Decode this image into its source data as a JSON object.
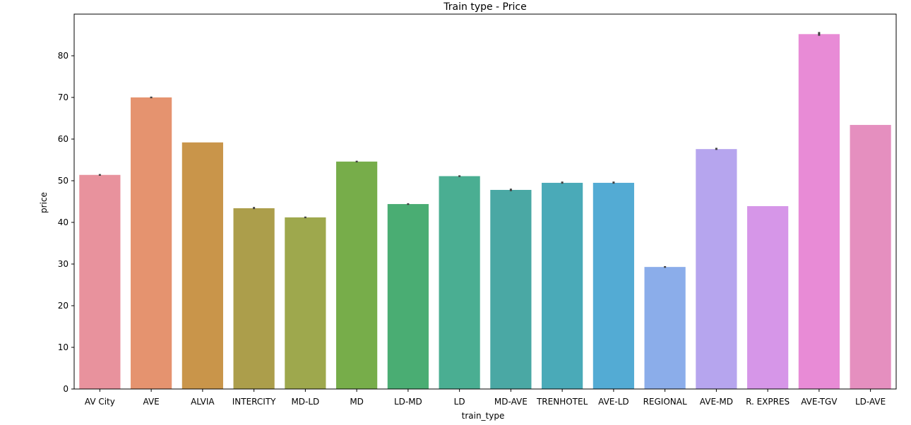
{
  "chart_data": {
    "type": "bar",
    "title": "Train type - Price",
    "xlabel": "train_type",
    "ylabel": "price",
    "ylim": [
      0,
      90
    ],
    "yticks": [
      0,
      10,
      20,
      30,
      40,
      50,
      60,
      70,
      80
    ],
    "grid": false,
    "categories": [
      "AV City",
      "AVE",
      "ALVIA",
      "INTERCITY",
      "MD-LD",
      "MD",
      "LD-MD",
      "LD",
      "MD-AVE",
      "TRENHOTEL",
      "AVE-LD",
      "REGIONAL",
      "AVE-MD",
      "R. EXPRES",
      "AVE-TGV",
      "LD-AVE"
    ],
    "values": [
      51.4,
      70.0,
      59.2,
      43.4,
      41.2,
      54.6,
      44.4,
      51.1,
      47.8,
      49.5,
      49.5,
      29.3,
      57.6,
      43.9,
      85.2,
      63.4
    ],
    "error_bars": [
      [
        51.2,
        51.6
      ],
      [
        69.8,
        70.2
      ],
      null,
      [
        43.2,
        43.7
      ],
      [
        41.0,
        41.4
      ],
      [
        54.4,
        54.8
      ],
      [
        44.2,
        44.6
      ],
      [
        50.9,
        51.3
      ],
      [
        47.5,
        48.1
      ],
      [
        49.3,
        49.8
      ],
      [
        49.3,
        49.8
      ],
      [
        29.1,
        29.5
      ],
      [
        57.4,
        57.9
      ],
      null,
      [
        84.8,
        85.7
      ],
      null
    ],
    "colors": [
      "#e8929d",
      "#e5936f",
      "#c9954a",
      "#ac9e4b",
      "#9ea84d",
      "#77ad4a",
      "#4aad73",
      "#4aae92",
      "#4aa8a4",
      "#4aaab8",
      "#53abd4",
      "#8badea",
      "#b6a5ee",
      "#d696e8",
      "#e88bd6",
      "#e58fbf"
    ]
  }
}
